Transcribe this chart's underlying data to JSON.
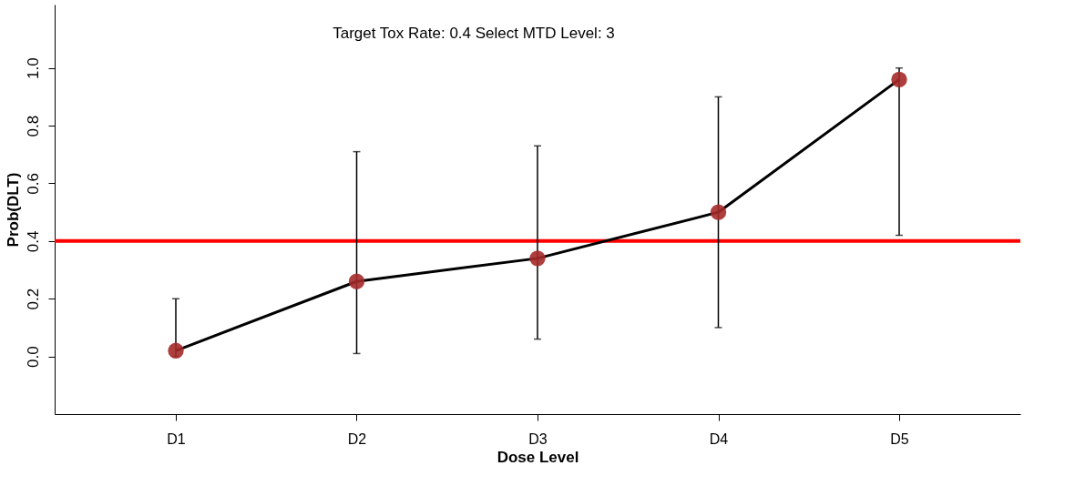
{
  "chart_data": {
    "type": "line",
    "title": "Target Tox Rate:  0.4    Select MTD Level: 3",
    "xlabel": "Dose Level",
    "ylabel": "Prob(DLT)",
    "categories": [
      "D1",
      "D2",
      "D3",
      "D4",
      "D5"
    ],
    "series": [
      {
        "color": "#000000",
        "colors": [
          "#a52a2a",
          "#a52a2a",
          "#a52a2a",
          "#a52a2a",
          "#a52a2a"
        ],
        "values": [
          0.02,
          0.26,
          0.34,
          0.5,
          0.96
        ],
        "errors": [
          [
            0.0,
            0.2
          ],
          [
            0.01,
            0.71
          ],
          [
            0.06,
            0.73
          ],
          [
            0.1,
            0.9
          ],
          [
            0.42,
            1.0
          ]
        ]
      }
    ],
    "ylim": [
      -0.2,
      1.22
    ],
    "yticks": [
      {
        "value": 0,
        "label": "0.0"
      },
      {
        "value": 0.2,
        "label": "0.2"
      },
      {
        "value": 0.4,
        "label": "0.4"
      },
      {
        "value": 0.6,
        "label": "0.6"
      },
      {
        "value": 0.8,
        "label": "0.8"
      },
      {
        "value": 1.0,
        "label": "1.0"
      }
    ],
    "ref_lines": [
      {
        "axis": "y",
        "value": 0.4,
        "color": "#ff0000"
      }
    ],
    "marker": "circle",
    "line_style": "solid",
    "grid": false
  }
}
